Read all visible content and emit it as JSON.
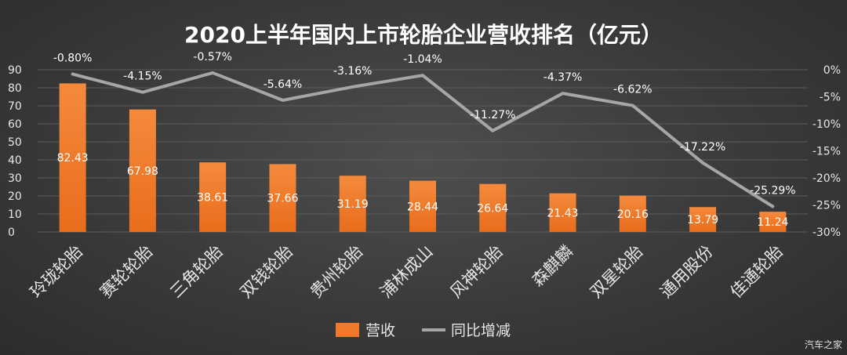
{
  "chart_data": {
    "type": "bar",
    "title": "2020上半年国内上市轮胎企业营收排名（亿元）",
    "categories": [
      "玲珑轮胎",
      "赛轮轮胎",
      "三角轮胎",
      "双钱轮胎",
      "贵州轮胎",
      "浦林成山",
      "风神轮胎",
      "森麒麟",
      "双星轮胎",
      "通用股份",
      "佳通轮胎"
    ],
    "series": [
      {
        "name": "营收",
        "type": "bar",
        "axis": "left",
        "color": "#f07a2a",
        "values": [
          82.43,
          67.98,
          38.61,
          37.66,
          31.19,
          28.44,
          26.64,
          21.43,
          20.16,
          13.79,
          11.24
        ],
        "labels": [
          "82.43",
          "67.98",
          "38.61",
          "37.66",
          "31.19",
          "28.44",
          "26.64",
          "21.43",
          "20.16",
          "13.79",
          "11.24"
        ]
      },
      {
        "name": "同比增减",
        "type": "line",
        "axis": "right",
        "color": "#a6a6a6",
        "values": [
          -0.8,
          -4.15,
          -0.57,
          -5.64,
          -3.16,
          -1.04,
          -11.27,
          -4.37,
          -6.62,
          -17.22,
          -25.29
        ],
        "labels": [
          "-0.80%",
          "-4.15%",
          "-0.57%",
          "-5.64%",
          "-3.16%",
          "-1.04%",
          "-11.27%",
          "-4.37%",
          "-6.62%",
          "-17.22%",
          "-25.29%"
        ]
      }
    ],
    "y_left": {
      "min": 0,
      "max": 90,
      "step": 10,
      "ticks": [
        "0",
        "10",
        "20",
        "30",
        "40",
        "50",
        "60",
        "70",
        "80",
        "90"
      ]
    },
    "y_right": {
      "min": -30,
      "max": 0,
      "step": 5,
      "ticks": [
        "-30%",
        "-25%",
        "-20%",
        "-15%",
        "-10%",
        "-5%",
        "0%"
      ]
    },
    "grid": true,
    "legend_position": "bottom-center"
  },
  "watermark": "汽车之家"
}
